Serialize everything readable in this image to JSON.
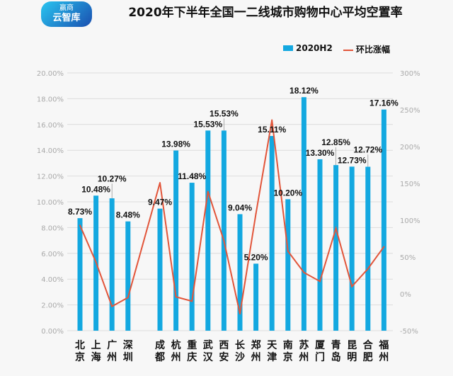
{
  "logo": {
    "line1": "赢商",
    "line2": "云智库"
  },
  "chart_data": {
    "type": "bar+line",
    "title": "2020年下半年全国一二线城市购物中心平均空置率",
    "categories": [
      "北京",
      "上海",
      "广州",
      "深圳",
      "成都",
      "杭州",
      "重庆",
      "武汉",
      "西安",
      "长沙",
      "郑州",
      "天津",
      "南京",
      "苏州",
      "厦门",
      "青岛",
      "昆明",
      "合肥",
      "福州"
    ],
    "series": [
      {
        "name": "2020H2",
        "type": "bar",
        "axis": "left",
        "color": "#13a8e0",
        "values": [
          8.73,
          10.48,
          10.27,
          8.48,
          9.47,
          13.98,
          11.48,
          15.53,
          15.53,
          9.04,
          5.2,
          15.11,
          10.2,
          18.12,
          13.3,
          12.85,
          12.73,
          12.72,
          17.16
        ],
        "labels": [
          "8.73%",
          "10.48%",
          "10.27%",
          "8.48%",
          "9.47%",
          "13.98%",
          "11.48%",
          "15.53%",
          "15.53%",
          "9.04%",
          "5.20%",
          "15.11%",
          "10.20%",
          "18.12%",
          "13.30%",
          "12.85%",
          "12.73%",
          "12.72%",
          "17.16%"
        ]
      },
      {
        "name": "环比涨幅",
        "type": "line",
        "axis": "right",
        "color": "#e2553a",
        "values": [
          93,
          43,
          -17,
          -5,
          151,
          -4,
          -10,
          139,
          72,
          -27,
          109,
          236,
          58,
          29,
          17,
          89,
          10,
          34,
          64
        ]
      }
    ],
    "left_axis": {
      "ylim": [
        0,
        20
      ],
      "ticks": [
        "0.00%",
        "2.00%",
        "4.00%",
        "6.00%",
        "8.00%",
        "10.00%",
        "12.00%",
        "14.00%",
        "16.00%",
        "18.00%",
        "20.00%"
      ]
    },
    "right_axis": {
      "ylim": [
        -50,
        300
      ],
      "ticks": [
        "-50%",
        "0%",
        "50%",
        "100%",
        "150%",
        "200%",
        "250%",
        "300%"
      ]
    },
    "grid": true,
    "legend": "top-right"
  }
}
